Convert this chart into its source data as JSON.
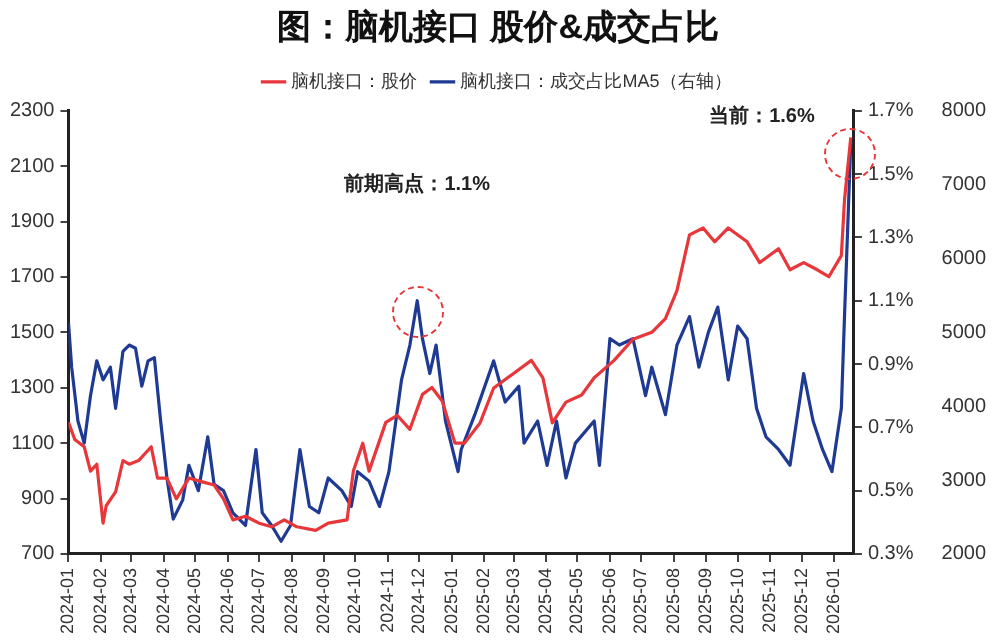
{
  "chart_data": {
    "type": "line",
    "title": "图：脑机接口 股价&成交占比",
    "legend": "top",
    "marker": "none",
    "xlim": [
      "2024-01-01",
      "2026-01-20"
    ],
    "xticks": [
      "2024-01",
      "2024-02",
      "2024-03",
      "2024-04",
      "2024-05",
      "2024-06",
      "2024-07",
      "2024-08",
      "2024-09",
      "2024-10",
      "2024-11",
      "2024-12",
      "2025-01",
      "2025-02",
      "2025-03",
      "2025-04",
      "2025-05",
      "2025-06",
      "2025-07",
      "2025-08",
      "2025-09",
      "2025-10",
      "2025-11",
      "2025-12",
      "2026-01"
    ],
    "ylim": [
      700,
      2300
    ],
    "yticks": [
      700,
      900,
      1100,
      1300,
      1500,
      1700,
      1900,
      2100,
      2300
    ],
    "y2lim": [
      0.3,
      1.7
    ],
    "y2ticks": [
      {
        "value": 0.3,
        "label": "0.3%"
      },
      {
        "value": 0.5,
        "label": "0.5%"
      },
      {
        "value": 0.7,
        "label": "0.7%"
      },
      {
        "value": 0.9,
        "label": "0.9%"
      },
      {
        "value": 1.1,
        "label": "1.1%"
      },
      {
        "value": 1.3,
        "label": "1.3%"
      },
      {
        "value": 1.5,
        "label": "1.5%"
      },
      {
        "value": 1.7,
        "label": "1.7%"
      }
    ],
    "y3lim": [
      2000,
      8000
    ],
    "y3ticks": [
      2000,
      3000,
      4000,
      5000,
      6000,
      7000,
      8000
    ],
    "annotations": [
      "前期高点：1.1%",
      "当前：1.6%"
    ],
    "series": [
      {
        "name": "脑机接口：股价",
        "color": "#e8373a",
        "x": [
          "2024-01-01",
          "2024-01-07",
          "2024-01-16",
          "2024-01-22",
          "2024-01-28",
          "2024-02-03",
          "2024-02-06",
          "2024-02-15",
          "2024-02-22",
          "2024-02-28",
          "2024-03-08",
          "2024-03-20",
          "2024-03-26",
          "2024-04-04",
          "2024-04-13",
          "2024-04-25",
          "2024-05-07",
          "2024-05-19",
          "2024-05-28",
          "2024-06-06",
          "2024-06-18",
          "2024-07-01",
          "2024-07-13",
          "2024-07-25",
          "2024-08-06",
          "2024-08-24",
          "2024-09-05",
          "2024-09-23",
          "2024-09-29",
          "2024-10-08",
          "2024-10-14",
          "2024-10-30",
          "2024-11-10",
          "2024-11-22",
          "2024-12-04",
          "2024-12-13",
          "2024-12-23",
          "2025-01-04",
          "2025-01-13",
          "2025-01-28",
          "2025-02-10",
          "2025-02-28",
          "2025-03-18",
          "2025-03-29",
          "2025-04-07",
          "2025-04-20",
          "2025-05-05",
          "2025-05-17",
          "2025-06-05",
          "2025-06-23",
          "2025-07-11",
          "2025-07-24",
          "2025-08-04",
          "2025-08-16",
          "2025-08-29",
          "2025-09-09",
          "2025-09-22",
          "2025-10-10",
          "2025-10-22",
          "2025-11-09",
          "2025-11-20",
          "2025-12-03",
          "2025-12-16",
          "2025-12-27",
          "2026-01-08",
          "2026-01-11",
          "2026-01-17"
        ],
        "values": [
          1175,
          1113,
          1087,
          999,
          1024,
          811,
          874,
          924,
          1037,
          1024,
          1037,
          1087,
          974,
          974,
          899,
          974,
          961,
          949,
          899,
          823,
          836,
          811,
          798,
          823,
          798,
          785,
          811,
          823,
          999,
          1100,
          999,
          1175,
          1200,
          1150,
          1276,
          1301,
          1251,
          1100,
          1100,
          1173,
          1299,
          1349,
          1399,
          1336,
          1173,
          1248,
          1274,
          1336,
          1399,
          1475,
          1500,
          1550,
          1651,
          1852,
          1877,
          1827,
          1877,
          1827,
          1752,
          1802,
          1726,
          1752,
          1726,
          1701,
          1777,
          1978,
          2204
        ]
      },
      {
        "name": "脑机接口：成交占比MA5（右轴）",
        "color": "#1f3a93",
        "axis": "y2",
        "x": [
          "2024-01-01",
          "2024-01-04",
          "2024-01-10",
          "2024-01-16",
          "2024-01-22",
          "2024-01-28",
          "2024-02-03",
          "2024-02-10",
          "2024-02-15",
          "2024-02-22",
          "2024-02-28",
          "2024-03-05",
          "2024-03-11",
          "2024-03-17",
          "2024-03-23",
          "2024-03-29",
          "2024-04-04",
          "2024-04-10",
          "2024-04-19",
          "2024-04-25",
          "2024-05-04",
          "2024-05-13",
          "2024-05-19",
          "2024-05-28",
          "2024-06-06",
          "2024-06-18",
          "2024-06-28",
          "2024-07-04",
          "2024-07-13",
          "2024-07-22",
          "2024-07-31",
          "2024-08-09",
          "2024-08-18",
          "2024-08-27",
          "2024-09-05",
          "2024-09-18",
          "2024-09-27",
          "2024-10-03",
          "2024-10-14",
          "2024-10-24",
          "2024-11-02",
          "2024-11-14",
          "2024-11-22",
          "2024-11-29",
          "2024-12-04",
          "2024-12-11",
          "2024-12-17",
          "2024-12-26",
          "2025-01-07",
          "2025-01-10",
          "2025-01-23",
          "2025-02-10",
          "2025-02-21",
          "2025-03-06",
          "2025-03-11",
          "2025-03-24",
          "2025-04-02",
          "2025-04-11",
          "2025-04-20",
          "2025-04-29",
          "2025-05-17",
          "2025-05-22",
          "2025-06-01",
          "2025-06-10",
          "2025-06-23",
          "2025-07-05",
          "2025-07-11",
          "2025-07-24",
          "2025-08-04",
          "2025-08-16",
          "2025-08-25",
          "2025-09-03",
          "2025-09-12",
          "2025-09-22",
          "2025-10-01",
          "2025-10-10",
          "2025-10-19",
          "2025-10-28",
          "2025-11-09",
          "2025-11-20",
          "2025-12-03",
          "2025-12-12",
          "2025-12-21",
          "2025-12-30",
          "2026-01-08",
          "2026-01-11",
          "2026-01-17"
        ],
        "values": [
          1.03,
          0.89,
          0.72,
          0.65,
          0.8,
          0.91,
          0.85,
          0.89,
          0.76,
          0.94,
          0.96,
          0.95,
          0.83,
          0.91,
          0.92,
          0.72,
          0.54,
          0.41,
          0.47,
          0.58,
          0.5,
          0.67,
          0.52,
          0.5,
          0.43,
          0.39,
          0.63,
          0.43,
          0.39,
          0.34,
          0.39,
          0.63,
          0.45,
          0.43,
          0.54,
          0.5,
          0.45,
          0.56,
          0.53,
          0.45,
          0.56,
          0.85,
          0.96,
          1.1,
          0.98,
          0.87,
          0.96,
          0.72,
          0.56,
          0.63,
          0.74,
          0.91,
          0.78,
          0.83,
          0.65,
          0.72,
          0.58,
          0.72,
          0.54,
          0.65,
          0.72,
          0.58,
          0.98,
          0.96,
          0.98,
          0.8,
          0.89,
          0.74,
          0.96,
          1.05,
          0.89,
          1.0,
          1.08,
          0.85,
          1.02,
          0.98,
          0.76,
          0.67,
          0.63,
          0.58,
          0.87,
          0.72,
          0.63,
          0.56,
          0.76,
          1.05,
          1.6
        ]
      }
    ]
  }
}
